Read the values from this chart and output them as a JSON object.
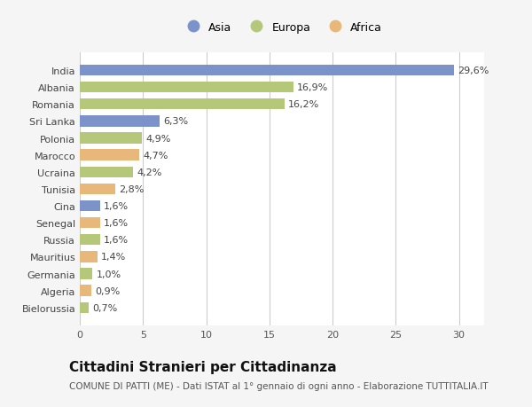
{
  "countries": [
    "India",
    "Albania",
    "Romania",
    "Sri Lanka",
    "Polonia",
    "Marocco",
    "Ucraina",
    "Tunisia",
    "Cina",
    "Senegal",
    "Russia",
    "Mauritius",
    "Germania",
    "Algeria",
    "Bielorussia"
  ],
  "values": [
    29.6,
    16.9,
    16.2,
    6.3,
    4.9,
    4.7,
    4.2,
    2.8,
    1.6,
    1.6,
    1.6,
    1.4,
    1.0,
    0.9,
    0.7
  ],
  "labels": [
    "29,6%",
    "16,9%",
    "16,2%",
    "6,3%",
    "4,9%",
    "4,7%",
    "4,2%",
    "2,8%",
    "1,6%",
    "1,6%",
    "1,6%",
    "1,4%",
    "1,0%",
    "0,9%",
    "0,7%"
  ],
  "continents": [
    "Asia",
    "Europa",
    "Europa",
    "Asia",
    "Europa",
    "Africa",
    "Europa",
    "Africa",
    "Asia",
    "Africa",
    "Europa",
    "Africa",
    "Europa",
    "Africa",
    "Europa"
  ],
  "colors": {
    "Asia": "#7b93c8",
    "Europa": "#b5c87a",
    "Africa": "#e8b87a"
  },
  "xlim": [
    0,
    32
  ],
  "xticks": [
    0,
    5,
    10,
    15,
    20,
    25,
    30
  ],
  "title": "Cittadini Stranieri per Cittadinanza",
  "subtitle": "COMUNE DI PATTI (ME) - Dati ISTAT al 1° gennaio di ogni anno - Elaborazione TUTTITALIA.IT",
  "bg_color": "#f5f5f5",
  "plot_bg_color": "#ffffff",
  "bar_height": 0.65,
  "title_fontsize": 11,
  "subtitle_fontsize": 7.5,
  "label_fontsize": 8,
  "tick_fontsize": 8,
  "legend_fontsize": 9
}
